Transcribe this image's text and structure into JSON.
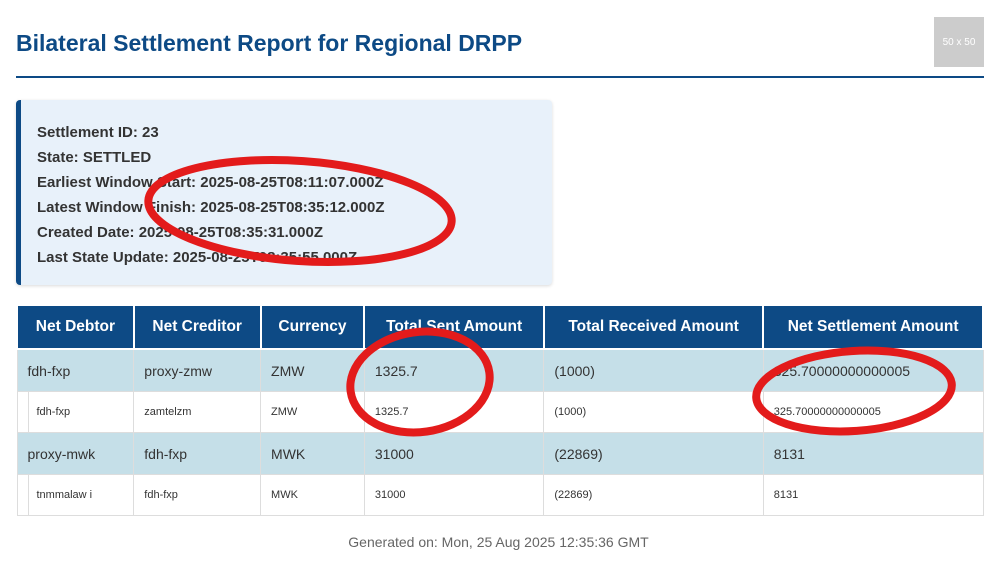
{
  "report": {
    "title": "Bilateral Settlement Report for Regional DRPP",
    "logo_placeholder": "50 x 50"
  },
  "info": {
    "settlement_id": "Settlement ID: 23",
    "state": "State: SETTLED",
    "earliest_window_start": "Earliest Window Start: 2025-08-25T08:11:07.000Z",
    "latest_window_finish": "Latest Window Finish: 2025-08-25T08:35:12.000Z",
    "created_date": "Created Date: 2025-08-25T08:35:31.000Z",
    "last_state_update": "Last State Update: 2025-08-25T08:35:55.000Z"
  },
  "table": {
    "headers": [
      "Net Debtor",
      "Net Creditor",
      "Currency",
      "Total Sent Amount",
      "Total Received Amount",
      "Net Settlement Amount"
    ],
    "rows": [
      [
        "fdh-fxp",
        "proxy-zmw",
        "ZMW",
        "1325.7",
        "(1000)",
        "325.70000000000005"
      ],
      [
        "fdh-fxp",
        "zamtelzm",
        "ZMW",
        "1325.7",
        "(1000)",
        "325.70000000000005"
      ],
      [
        "proxy-mwk",
        "fdh-fxp",
        "MWK",
        "31000",
        "(22869)",
        "8131"
      ],
      [
        "tnmmalaw i",
        "fdh-fxp",
        "MWK",
        "31000",
        "(22869)",
        "8131"
      ]
    ]
  },
  "footer": "Generated on: Mon, 25 Aug 2025 12:35:36 GMT",
  "colors": {
    "brand_blue": "#0d4a85",
    "summary_row": "#c5dfe8",
    "info_bg": "#e8f1fa",
    "annotation_red": "#e31b1b"
  }
}
